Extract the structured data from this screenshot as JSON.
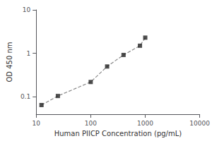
{
  "chart_data": {
    "type": "line",
    "x": [
      12.5,
      25,
      100,
      200,
      400,
      800,
      1000
    ],
    "series": [
      {
        "type": "line",
        "color": "#888888",
        "line_style": "dashed",
        "values": [
          0.065,
          0.105,
          0.22,
          0.5,
          0.92,
          1.5,
          2.3
        ]
      },
      {
        "type": "scatter",
        "color": "#222222",
        "marker": "square",
        "values": [
          0.065,
          0.105,
          0.22,
          0.5,
          0.92,
          1.5,
          2.3
        ]
      }
    ],
    "x_label": "Human PIICP Concentration (pg/mL)",
    "y_label": "OD 450 nm",
    "xlim": [
      10,
      10000
    ],
    "ylim": [
      0.04,
      10
    ],
    "xticks": [
      10,
      100,
      1000,
      10000
    ],
    "yticks": [
      0.1,
      1,
      10
    ],
    "log": true,
    "grid": false
  }
}
